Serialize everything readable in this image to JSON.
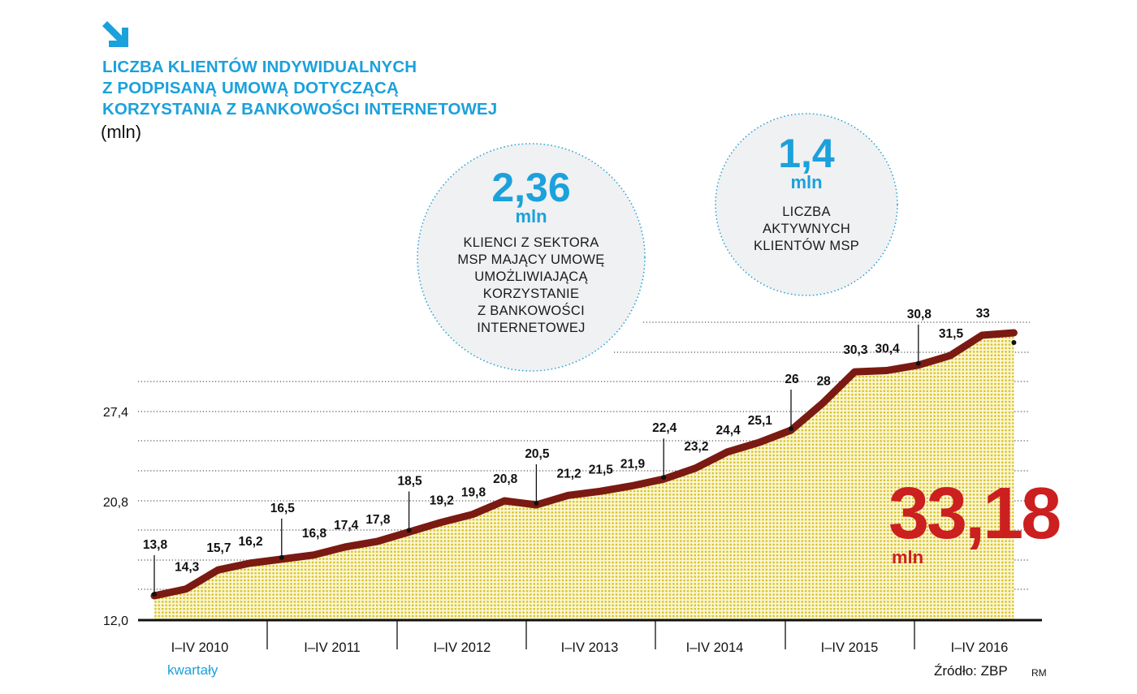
{
  "header": {
    "title_lines": [
      "LICZBA KLIENTÓW INDYWIDUALNYCH",
      "Z PODPISANĄ UMOWĄ DOTYCZĄCĄ",
      "KORZYSTANIA Z BANKOWOŚCI INTERNETOWEJ"
    ],
    "unit": "(mln)",
    "arrow_icon": "arrow-down-right-icon"
  },
  "callouts": [
    {
      "value": "2,36",
      "unit": "mln",
      "lines": [
        "KLIENCI Z SEKTORA",
        "MSP MAJĄCY UMOWĘ",
        "UMOŻLIWIAJĄCĄ",
        "KORZYSTANIE",
        "Z BANKOWOŚCI",
        "INTERNETOWEJ"
      ]
    },
    {
      "value": "1,4",
      "unit": "mln",
      "lines": [
        "LICZBA",
        "AKTYWNYCH",
        "KLIENTÓW MSP"
      ]
    }
  ],
  "headline": {
    "value": "33,18",
    "unit": "mln"
  },
  "footer": {
    "x_caption": "kwartały",
    "source": "Źródło: ZBP",
    "author": "RM"
  },
  "colors": {
    "accent": "#1ba1dc",
    "line": "#7a1a12",
    "fill_dot": "#d8c22a",
    "headline": "#cc1f1f"
  },
  "chart_data": {
    "type": "area",
    "title": "LICZBA KLIENTÓW INDYWIDUALNYCH Z PODPISANĄ UMOWĄ DOTYCZĄCĄ KORZYSTANIA Z BANKOWOŚCI INTERNETOWEJ",
    "ylabel": "(mln)",
    "xlabel": "kwartały",
    "y_ticks": [
      "12,0",
      "20,8",
      "27,4"
    ],
    "y_tick_values": [
      12.0,
      20.8,
      27.4
    ],
    "ylim": [
      12.0,
      34.0
    ],
    "year_labels": [
      "I–IV 2010",
      "I–IV 2011",
      "I–IV 2012",
      "I–IV 2013",
      "I–IV 2014",
      "I–IV 2015",
      "I–IV 2016"
    ],
    "categories": [
      "I 2010",
      "II 2010",
      "III 2010",
      "IV 2010",
      "I 2011",
      "II 2011",
      "III 2011",
      "IV 2011",
      "I 2012",
      "II 2012",
      "III 2012",
      "IV 2012",
      "I 2013",
      "II 2013",
      "III 2013",
      "IV 2013",
      "I 2014",
      "II 2014",
      "III 2014",
      "IV 2014",
      "I 2015",
      "II 2015",
      "III 2015",
      "IV 2015",
      "I 2016",
      "II 2016",
      "III 2016",
      "IV 2016"
    ],
    "values": [
      13.8,
      14.3,
      15.7,
      16.2,
      16.5,
      16.8,
      17.4,
      17.8,
      18.5,
      19.2,
      19.8,
      20.8,
      20.5,
      21.2,
      21.5,
      21.9,
      22.4,
      23.2,
      24.4,
      25.1,
      26,
      28,
      30.3,
      30.4,
      30.8,
      31.5,
      33,
      33.18
    ],
    "labels": [
      "13,8",
      "14,3",
      "15,7",
      "16,2",
      "16,5",
      "16,8",
      "17,4",
      "17,8",
      "18,5",
      "19,2",
      "19,8",
      "20,8",
      "20,5",
      "21,2",
      "21,5",
      "21,9",
      "22,4",
      "23,2",
      "24,4",
      "25,1",
      "26",
      "28",
      "30,3",
      "30,4",
      "30,8",
      "31,5",
      "33",
      ""
    ],
    "leader_points": [
      0,
      4,
      8,
      12,
      16,
      20,
      24,
      27
    ]
  }
}
